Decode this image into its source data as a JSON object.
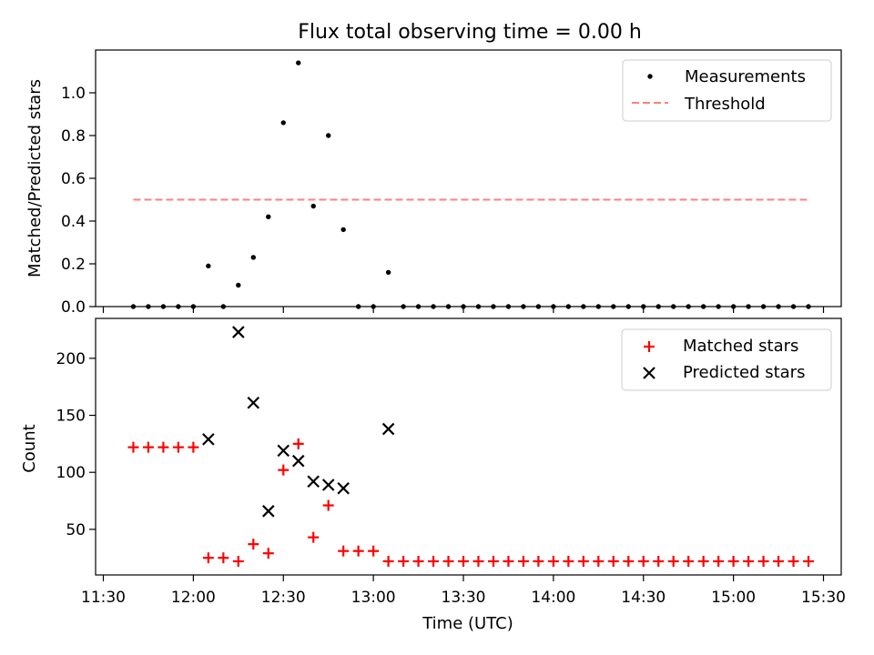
{
  "title": "Flux total observing time = 0.00 h",
  "xlabel": "Time (UTC)",
  "x_ticks": [
    "11:30",
    "12:00",
    "12:30",
    "13:00",
    "13:30",
    "14:00",
    "14:30",
    "15:00",
    "15:30"
  ],
  "chart_data": [
    {
      "type": "scatter",
      "ylabel": "Matched/Predicted stars",
      "ylim": [
        0,
        1.2
      ],
      "y_ticks": [
        "0.0",
        "0.2",
        "0.4",
        "0.6",
        "0.8",
        "1.0"
      ],
      "legend_position": "top-right",
      "series": [
        {
          "name": "Measurements",
          "color": "#000000",
          "marker": "dot",
          "x": [
            "11:40",
            "11:45",
            "11:50",
            "11:55",
            "12:00",
            "12:05",
            "12:10",
            "12:15",
            "12:20",
            "12:25",
            "12:30",
            "12:35",
            "12:40",
            "12:45",
            "12:50",
            "12:55",
            "13:00",
            "13:05",
            "13:10",
            "13:15",
            "13:20",
            "13:25",
            "13:30",
            "13:35",
            "13:40",
            "13:45",
            "13:50",
            "13:55",
            "14:00",
            "14:05",
            "14:10",
            "14:15",
            "14:20",
            "14:25",
            "14:30",
            "14:35",
            "14:40",
            "14:45",
            "14:50",
            "14:55",
            "15:00",
            "15:05",
            "15:10",
            "15:15",
            "15:20",
            "15:25"
          ],
          "y": [
            0,
            0,
            0,
            0,
            0,
            0.19,
            0,
            0.1,
            0.23,
            0.42,
            0.86,
            1.14,
            0.47,
            0.8,
            0.36,
            0,
            0,
            0.16,
            0,
            0,
            0,
            0,
            0,
            0,
            0,
            0,
            0,
            0,
            0,
            0,
            0,
            0,
            0,
            0,
            0,
            0,
            0,
            0,
            0,
            0,
            0,
            0,
            0,
            0,
            0,
            0
          ]
        },
        {
          "name": "Threshold",
          "color": "#ff7f7f",
          "marker": "dashed-line",
          "x": [
            "11:40",
            "15:25"
          ],
          "y": [
            0.5,
            0.5
          ]
        }
      ]
    },
    {
      "type": "scatter",
      "ylabel": "Count",
      "ylim": [
        10,
        235
      ],
      "y_ticks": [
        "50",
        "100",
        "150",
        "200"
      ],
      "legend_position": "top-right",
      "series": [
        {
          "name": "Matched stars",
          "color": "#ff0000",
          "marker": "plus",
          "x": [
            "11:40",
            "11:45",
            "11:50",
            "11:55",
            "12:00",
            "12:05",
            "12:10",
            "12:15",
            "12:20",
            "12:25",
            "12:30",
            "12:35",
            "12:40",
            "12:45",
            "12:50",
            "12:55",
            "13:00",
            "13:05",
            "13:10",
            "13:15",
            "13:20",
            "13:25",
            "13:30",
            "13:35",
            "13:40",
            "13:45",
            "13:50",
            "13:55",
            "14:00",
            "14:05",
            "14:10",
            "14:15",
            "14:20",
            "14:25",
            "14:30",
            "14:35",
            "14:40",
            "14:45",
            "14:50",
            "14:55",
            "15:00",
            "15:05",
            "15:10",
            "15:15",
            "15:20",
            "15:25"
          ],
          "y": [
            122,
            122,
            122,
            122,
            122,
            25,
            25,
            22,
            37,
            29,
            102,
            125,
            43,
            71,
            31,
            31,
            31,
            22,
            22,
            22,
            22,
            22,
            22,
            22,
            22,
            22,
            22,
            22,
            22,
            22,
            22,
            22,
            22,
            22,
            22,
            22,
            22,
            22,
            22,
            22,
            22,
            22,
            22,
            22,
            22,
            22
          ]
        },
        {
          "name": "Predicted stars",
          "color": "#000000",
          "marker": "x",
          "x": [
            "12:05",
            "12:15",
            "12:20",
            "12:25",
            "12:30",
            "12:35",
            "12:40",
            "12:45",
            "12:50",
            "13:05"
          ],
          "y": [
            129,
            223,
            161,
            66,
            119,
            110,
            92,
            89,
            86,
            138
          ]
        }
      ]
    }
  ]
}
